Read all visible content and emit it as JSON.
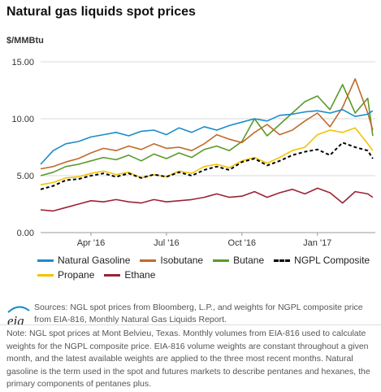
{
  "colors": {
    "natural_gasoline": "#1a8cc8",
    "isobutane": "#c06a2a",
    "butane": "#5a9a2a",
    "ngpl_composite": "#000000",
    "propane": "#f2c400",
    "ethane": "#9b2335",
    "grid": "#d9d9d9"
  },
  "legend": {
    "row1": [
      "Natural Gasoline",
      "Isobutane",
      "Butane",
      "NGPL Composite"
    ],
    "row2": [
      "Propane",
      "Ethane"
    ]
  },
  "sources": "Sources: NGL spot prices from Bloomberg, L.P., and weights for NGPL composite price from EIA-816, Monthly Natural Gas Liquids Report.",
  "note": "Note: NGL spot prices at Mont Belvieu, Texas. Monthly volumes from EIA-816 used to calculate weights for the NGPL composite price. EIA-816 volume weights are constant throughout a given month, and the latest available weights are applied to the three most recent months. Natural gasoline is the term used in the spot and futures markets to describe pentanes and hexanes, the primary components of pentanes plus.",
  "logo_text": "eia",
  "chart_data": {
    "type": "line",
    "title": "Natural gas liquids spot prices",
    "ylabel": "$/MMBtu",
    "ylim": [
      0,
      15
    ],
    "yticks": [
      "0.00",
      "5.00",
      "10.00",
      "15.00"
    ],
    "xticks": [
      "Apr '16",
      "Jul '16",
      "Oct '16",
      "Jan '17"
    ],
    "xtick_positions": [
      2,
      5,
      8,
      11
    ],
    "x": [
      0,
      0.5,
      1,
      1.5,
      2,
      2.5,
      3,
      3.5,
      4,
      4.5,
      5,
      5.5,
      6,
      6.5,
      7,
      7.5,
      8,
      8.5,
      9,
      9.5,
      10,
      10.5,
      11,
      11.5,
      12,
      12.5,
      13,
      13.2
    ],
    "xlim": [
      0,
      13.3
    ],
    "grid": true,
    "legend_position": "bottom",
    "series": [
      {
        "name": "Natural Gasoline",
        "key": "natural_gasoline",
        "dashed": false,
        "values": [
          6.0,
          7.2,
          7.8,
          8.0,
          8.4,
          8.6,
          8.8,
          8.5,
          8.9,
          9.0,
          8.6,
          9.2,
          8.8,
          9.3,
          9.0,
          9.4,
          9.7,
          10.0,
          9.8,
          10.3,
          10.4,
          10.6,
          10.7,
          10.5,
          10.8,
          10.2,
          10.4,
          10.7
        ]
      },
      {
        "name": "Isobutane",
        "key": "isobutane",
        "dashed": false,
        "values": [
          5.6,
          5.8,
          6.2,
          6.5,
          7.0,
          7.4,
          7.2,
          7.6,
          7.3,
          7.8,
          7.4,
          7.5,
          7.2,
          7.8,
          8.6,
          8.2,
          7.9,
          8.8,
          9.5,
          8.6,
          9.0,
          9.8,
          10.5,
          9.3,
          11.0,
          13.5,
          10.5,
          9.0
        ]
      },
      {
        "name": "Butane",
        "key": "butane",
        "dashed": false,
        "values": [
          5.0,
          5.3,
          5.8,
          6.0,
          6.3,
          6.6,
          6.4,
          6.8,
          6.3,
          6.9,
          6.5,
          7.0,
          6.6,
          7.3,
          7.6,
          7.2,
          8.0,
          10.0,
          8.5,
          9.5,
          10.5,
          11.5,
          12.0,
          10.8,
          13.0,
          10.5,
          11.8,
          8.5
        ]
      },
      {
        "name": "NGPL Composite",
        "key": "ngpl_composite",
        "dashed": true,
        "values": [
          3.8,
          4.1,
          4.6,
          4.7,
          5.0,
          5.2,
          4.9,
          5.2,
          4.8,
          5.1,
          4.9,
          5.3,
          5.0,
          5.5,
          5.8,
          5.5,
          6.2,
          6.5,
          5.9,
          6.3,
          6.8,
          7.1,
          7.3,
          6.8,
          7.9,
          7.5,
          7.2,
          6.5
        ]
      },
      {
        "name": "Propane",
        "key": "propane",
        "dashed": false,
        "values": [
          4.2,
          4.4,
          4.8,
          4.9,
          5.2,
          5.4,
          5.1,
          5.3,
          4.8,
          5.1,
          4.9,
          5.4,
          5.2,
          5.8,
          6.0,
          5.7,
          6.3,
          6.6,
          6.1,
          6.6,
          7.2,
          7.5,
          8.6,
          9.0,
          8.8,
          9.2,
          7.8,
          7.2
        ]
      },
      {
        "name": "Ethane",
        "key": "ethane",
        "dashed": false,
        "values": [
          2.0,
          1.9,
          2.2,
          2.5,
          2.8,
          2.7,
          2.9,
          2.7,
          2.6,
          2.9,
          2.7,
          2.8,
          2.9,
          3.1,
          3.4,
          3.1,
          3.2,
          3.6,
          3.1,
          3.5,
          3.8,
          3.4,
          3.9,
          3.5,
          2.6,
          3.6,
          3.4,
          3.1
        ]
      }
    ]
  }
}
